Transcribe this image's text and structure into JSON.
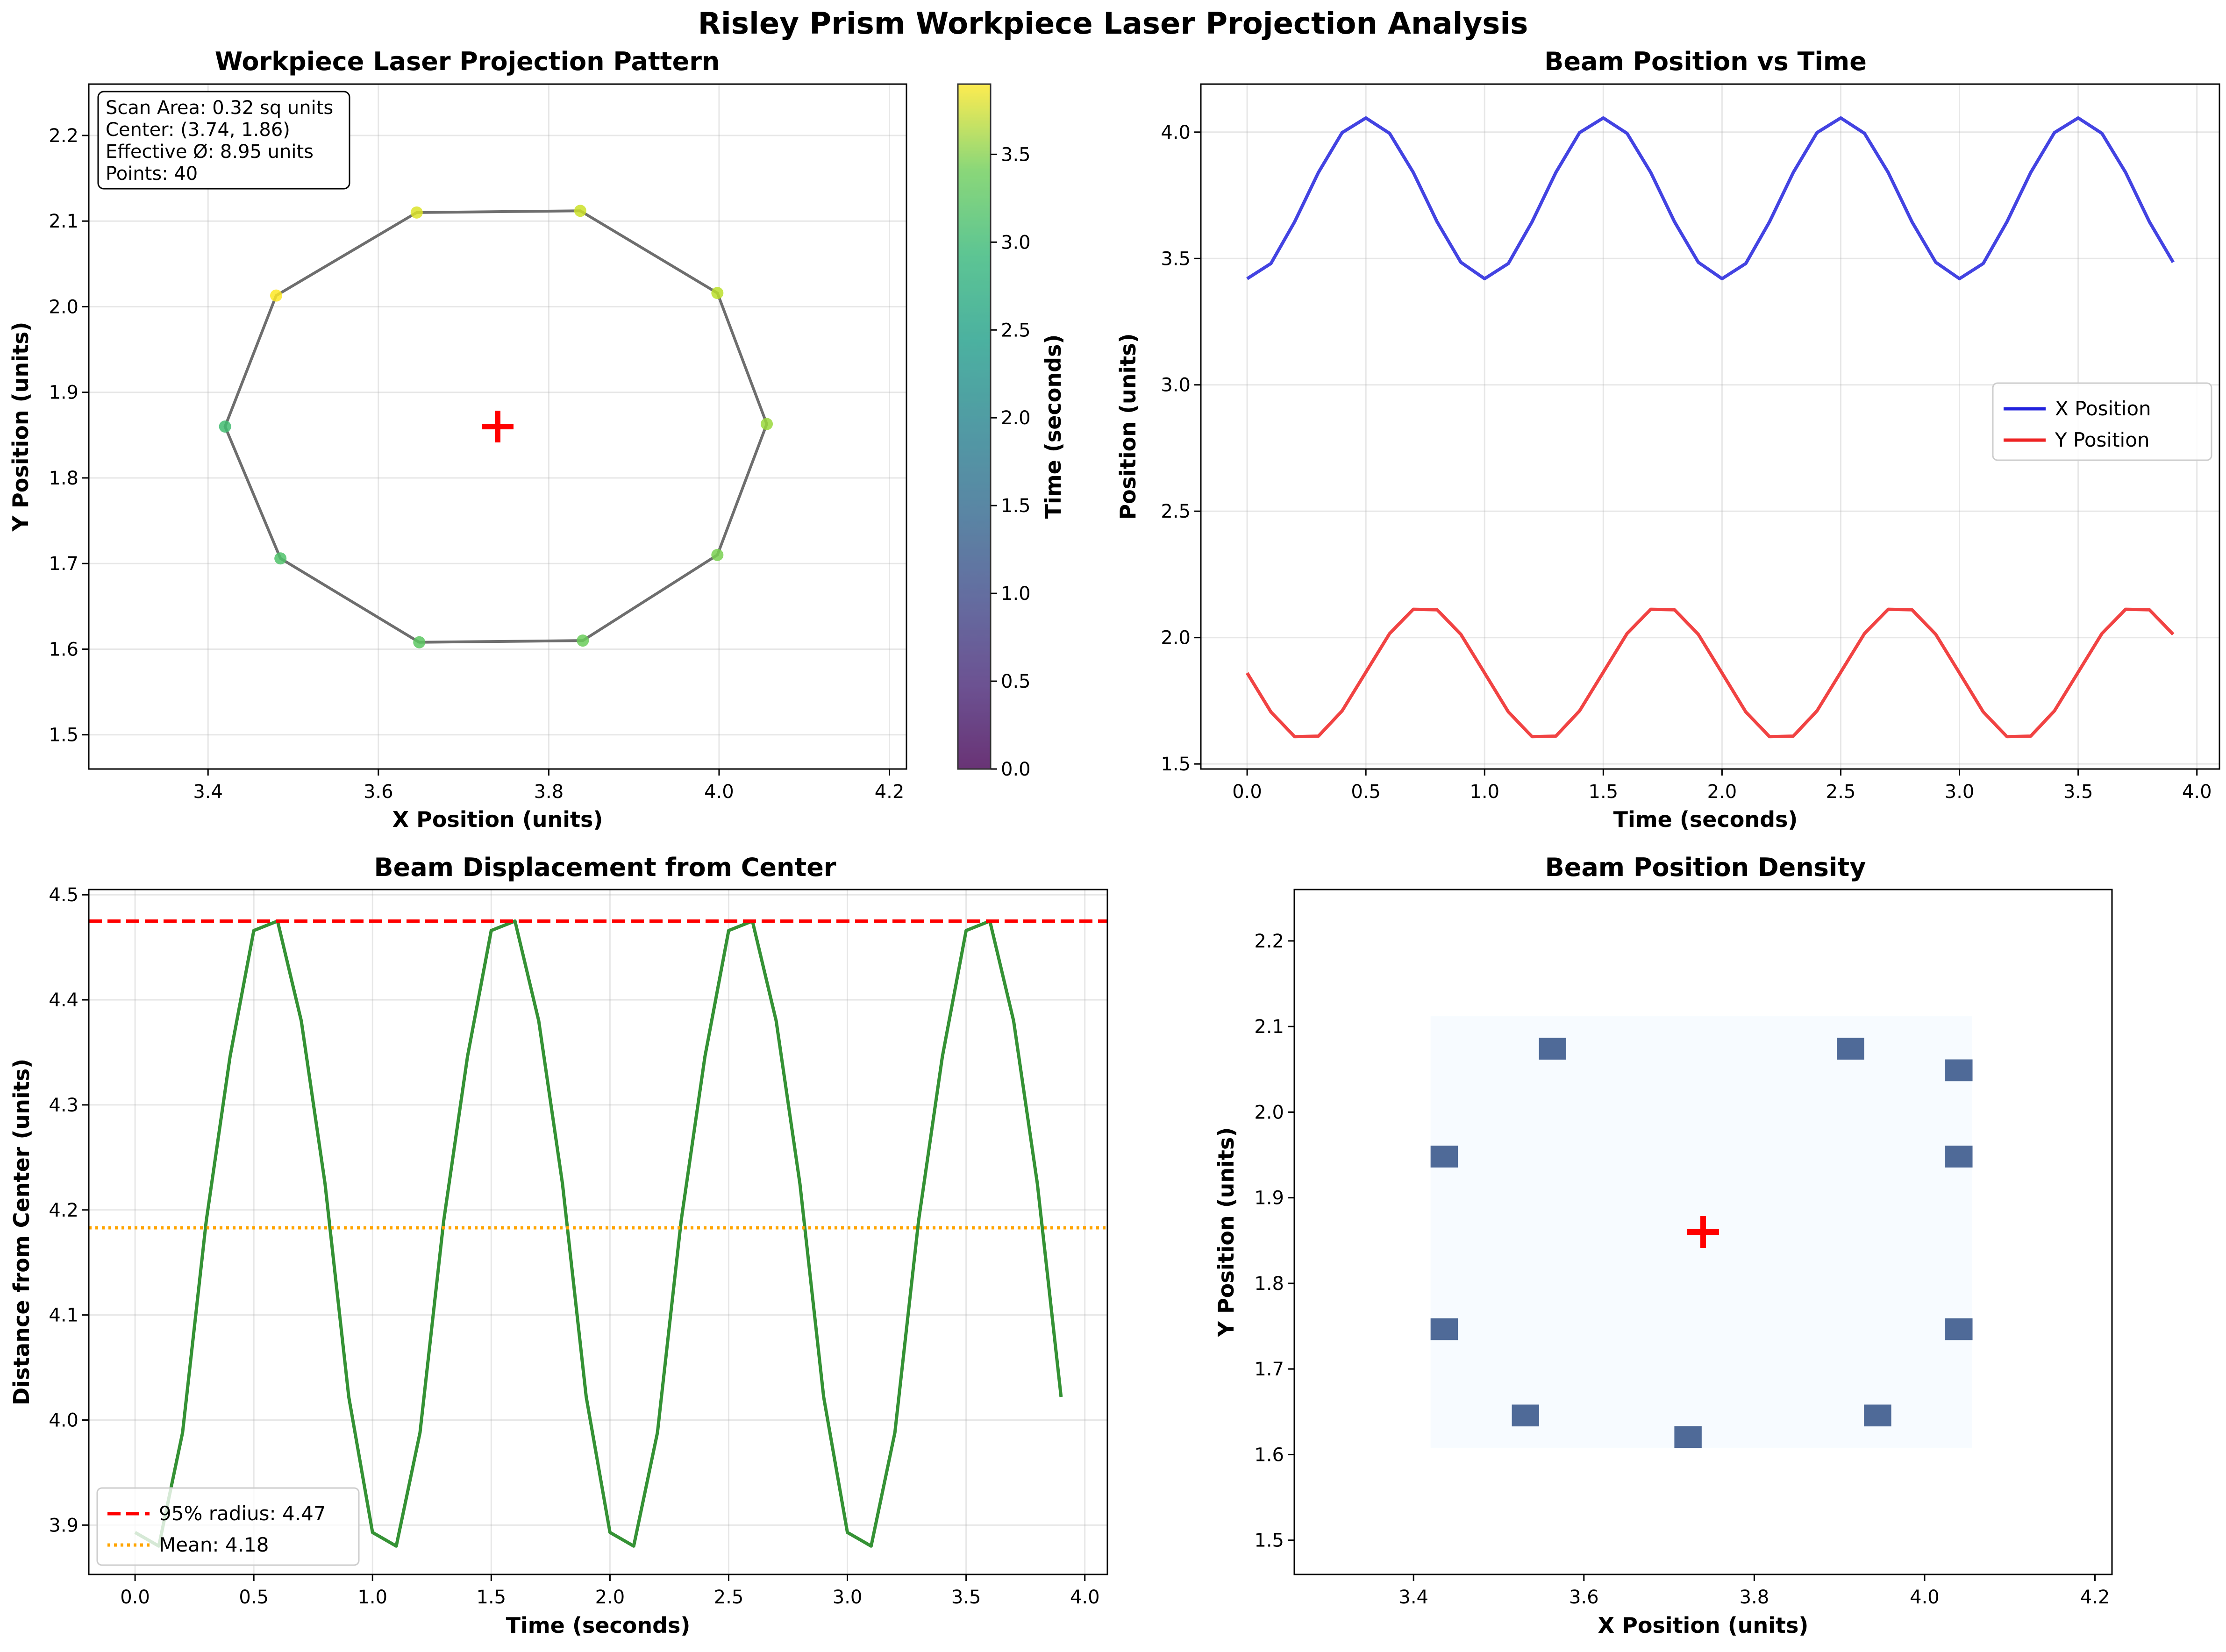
{
  "figure": {
    "suptitle": "Risley Prism Workpiece Laser Projection Analysis"
  },
  "colors": {
    "x_series": "#2222dd",
    "y_series": "#ee2222",
    "displacement": "#2a8c2a",
    "radius_line": "#ff0000",
    "mean_line": "#ffa500",
    "path_line": "#6e6e6e",
    "center_marker": "#ff0000",
    "density_background": "#f7fbff",
    "density_cell": "#4f6a98"
  },
  "chart_data": [
    {
      "id": "pattern",
      "type": "scatter",
      "title": "Workpiece Laser Projection Pattern",
      "xlabel": "X Position (units)",
      "ylabel": "Y Position (units)",
      "xlim": [
        3.26,
        4.22
      ],
      "ylim": [
        1.46,
        2.26
      ],
      "xticks": [
        "3.4",
        "3.6",
        "3.8",
        "4.0",
        "4.2"
      ],
      "yticks": [
        "1.5",
        "1.6",
        "1.7",
        "1.8",
        "1.9",
        "2.0",
        "2.1",
        "2.2"
      ],
      "grid": true,
      "points": [
        {
          "x": 3.42,
          "y": 1.86,
          "t": 2.7
        },
        {
          "x": 3.485,
          "y": 1.706,
          "t": 2.8
        },
        {
          "x": 3.648,
          "y": 1.608,
          "t": 2.9
        },
        {
          "x": 3.84,
          "y": 1.61,
          "t": 3.0
        },
        {
          "x": 3.998,
          "y": 1.71,
          "t": 3.1
        },
        {
          "x": 4.056,
          "y": 1.863,
          "t": 3.3
        },
        {
          "x": 3.998,
          "y": 2.016,
          "t": 3.5
        },
        {
          "x": 3.837,
          "y": 2.112,
          "t": 3.6
        },
        {
          "x": 3.645,
          "y": 2.11,
          "t": 3.7
        },
        {
          "x": 3.48,
          "y": 2.013,
          "t": 3.9
        }
      ],
      "center": {
        "x": 3.74,
        "y": 1.86
      },
      "info_box": [
        "Scan Area: 0.32 sq units",
        "Center: (3.74, 1.86)",
        "Effective Ø: 8.95 units",
        "Points: 40"
      ],
      "colorbar": {
        "label": "Time (seconds)",
        "range": [
          0.0,
          3.9
        ],
        "ticks": [
          "0.0",
          "0.5",
          "1.0",
          "1.5",
          "2.0",
          "2.5",
          "3.0",
          "3.5"
        ],
        "colormap": "viridis"
      }
    },
    {
      "id": "position_time",
      "type": "line",
      "title": "Beam Position vs Time",
      "xlabel": "Time (seconds)",
      "ylabel": "Position (units)",
      "xlim": [
        -0.195,
        4.095
      ],
      "ylim": [
        1.48,
        4.19
      ],
      "xticks": [
        "0.0",
        "0.5",
        "1.0",
        "1.5",
        "2.0",
        "2.5",
        "3.0",
        "3.5",
        "4.0"
      ],
      "yticks": [
        "1.5",
        "2.0",
        "2.5",
        "3.0",
        "3.5",
        "4.0"
      ],
      "grid": true,
      "legend_position": "center-right",
      "x": [
        0.0,
        0.1,
        0.2,
        0.3,
        0.4,
        0.5,
        0.6,
        0.7,
        0.8,
        0.9,
        1.0,
        1.1,
        1.2,
        1.3,
        1.4,
        1.5,
        1.6,
        1.7,
        1.8,
        1.9,
        2.0,
        2.1,
        2.2,
        2.3,
        2.4,
        2.5,
        2.6,
        2.7,
        2.8,
        2.9,
        3.0,
        3.1,
        3.2,
        3.3,
        3.4,
        3.5,
        3.6,
        3.7,
        3.8,
        3.9
      ],
      "series": [
        {
          "name": "X Position",
          "values": [
            3.42,
            3.48,
            3.645,
            3.84,
            3.998,
            4.056,
            3.995,
            3.84,
            3.645,
            3.485,
            3.42,
            3.48,
            3.645,
            3.84,
            3.998,
            4.056,
            3.995,
            3.84,
            3.645,
            3.485,
            3.42,
            3.48,
            3.645,
            3.84,
            3.998,
            4.056,
            3.995,
            3.84,
            3.645,
            3.485,
            3.42,
            3.48,
            3.645,
            3.84,
            3.998,
            4.056,
            3.995,
            3.84,
            3.645,
            3.485
          ]
        },
        {
          "name": "Y Position",
          "values": [
            1.86,
            1.706,
            1.608,
            1.61,
            1.71,
            1.863,
            2.016,
            2.112,
            2.11,
            2.013,
            1.86,
            1.706,
            1.608,
            1.61,
            1.71,
            1.863,
            2.016,
            2.112,
            2.11,
            2.013,
            1.86,
            1.706,
            1.608,
            1.61,
            1.71,
            1.863,
            2.016,
            2.112,
            2.11,
            2.013,
            1.86,
            1.706,
            1.608,
            1.61,
            1.71,
            1.863,
            2.016,
            2.112,
            2.11,
            2.013
          ]
        }
      ]
    },
    {
      "id": "displacement",
      "type": "line",
      "title": "Beam Displacement from Center",
      "xlabel": "Time (seconds)",
      "ylabel": "Distance from Center (units)",
      "xlim": [
        -0.195,
        4.095
      ],
      "ylim": [
        3.853,
        4.505
      ],
      "xticks": [
        "0.0",
        "0.5",
        "1.0",
        "1.5",
        "2.0",
        "2.5",
        "3.0",
        "3.5",
        "4.0"
      ],
      "yticks": [
        "3.9",
        "4.0",
        "4.1",
        "4.2",
        "4.3",
        "4.4",
        "4.5"
      ],
      "grid": true,
      "legend_position": "lower-left",
      "x": [
        0.0,
        0.1,
        0.2,
        0.3,
        0.4,
        0.5,
        0.6,
        0.7,
        0.8,
        0.9,
        1.0,
        1.1,
        1.2,
        1.3,
        1.4,
        1.5,
        1.6,
        1.7,
        1.8,
        1.9,
        2.0,
        2.1,
        2.2,
        2.3,
        2.4,
        2.5,
        2.6,
        2.7,
        2.8,
        2.9,
        3.0,
        3.1,
        3.2,
        3.3,
        3.4,
        3.5,
        3.6,
        3.7,
        3.8,
        3.9
      ],
      "values": [
        3.893,
        3.88,
        3.988,
        4.19,
        4.346,
        4.466,
        4.475,
        4.38,
        4.225,
        4.022,
        3.893,
        3.88,
        3.988,
        4.19,
        4.346,
        4.466,
        4.475,
        4.38,
        4.225,
        4.022,
        3.893,
        3.88,
        3.988,
        4.19,
        4.346,
        4.466,
        4.475,
        4.38,
        4.225,
        4.022,
        3.893,
        3.88,
        3.988,
        4.19,
        4.346,
        4.466,
        4.475,
        4.38,
        4.225,
        4.022
      ],
      "hlines": [
        {
          "name": "95% radius: 4.47",
          "value": 4.475,
          "style": "dashed"
        },
        {
          "name": "Mean: 4.18",
          "value": 4.183,
          "style": "dotted"
        }
      ]
    },
    {
      "id": "density",
      "type": "heatmap",
      "title": "Beam Position Density",
      "xlabel": "X Position (units)",
      "ylabel": "Y Position (units)",
      "xlim": [
        3.26,
        4.22
      ],
      "ylim": [
        1.46,
        2.26
      ],
      "xticks": [
        "3.4",
        "3.6",
        "3.8",
        "4.0",
        "4.2"
      ],
      "yticks": [
        "1.5",
        "1.6",
        "1.7",
        "1.8",
        "1.9",
        "2.0",
        "2.1",
        "2.2"
      ],
      "grid": false,
      "extent": {
        "x": [
          3.42,
          4.056
        ],
        "y": [
          1.608,
          2.112
        ]
      },
      "bins": 20,
      "occupied_cells": [
        [
          0,
          9
        ],
        [
          1,
          3
        ],
        [
          1,
          16
        ],
        [
          5,
          0
        ],
        [
          5,
          19
        ],
        [
          13,
          0
        ],
        [
          13,
          19
        ],
        [
          17,
          19
        ],
        [
          18,
          4
        ],
        [
          18,
          15
        ]
      ],
      "center": {
        "x": 3.74,
        "y": 1.86
      }
    }
  ]
}
